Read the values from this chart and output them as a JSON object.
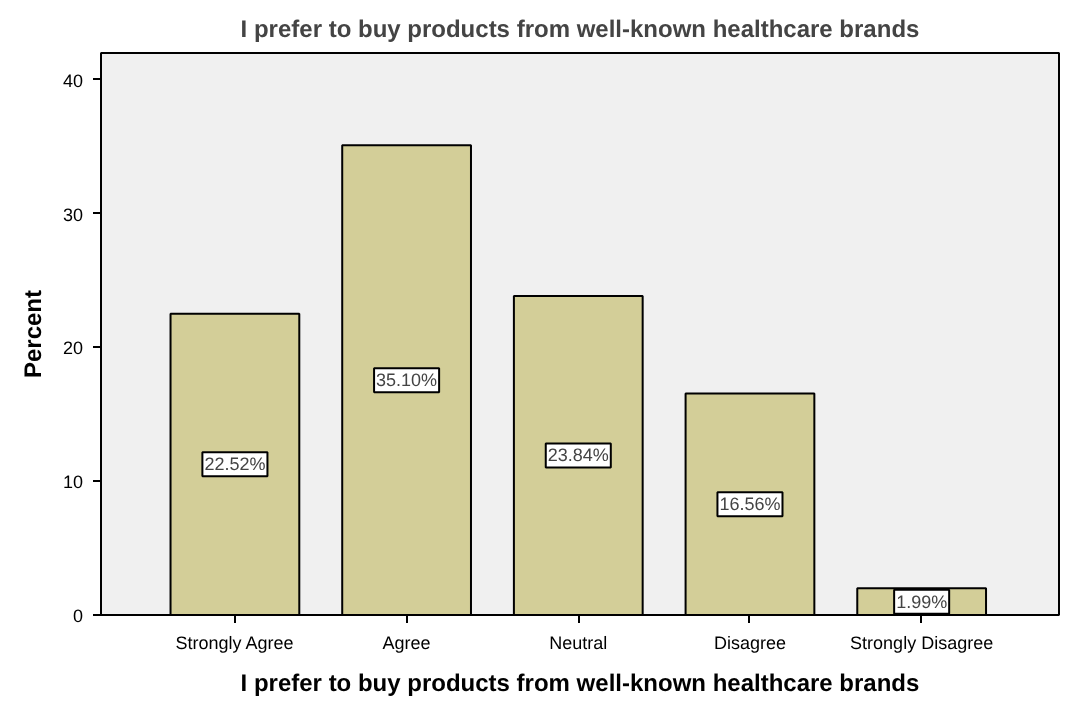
{
  "chart_data": {
    "type": "bar",
    "title": "I prefer to buy products from well-known healthcare brands",
    "xlabel": "I prefer to buy products from well-known healthcare brands",
    "ylabel": "Percent",
    "categories": [
      "Strongly Agree",
      "Agree",
      "Neutral",
      "Disagree",
      "Strongly Disagree"
    ],
    "values": [
      22.52,
      35.1,
      23.84,
      16.56,
      1.99
    ],
    "value_labels": [
      "22.52%",
      "35.10%",
      "23.84%",
      "16.56%",
      "1.99%"
    ],
    "color": "#d3ce98",
    "ylim": [
      0,
      42
    ],
    "yticks": [
      0,
      10,
      20,
      30,
      40
    ],
    "grid": false
  }
}
